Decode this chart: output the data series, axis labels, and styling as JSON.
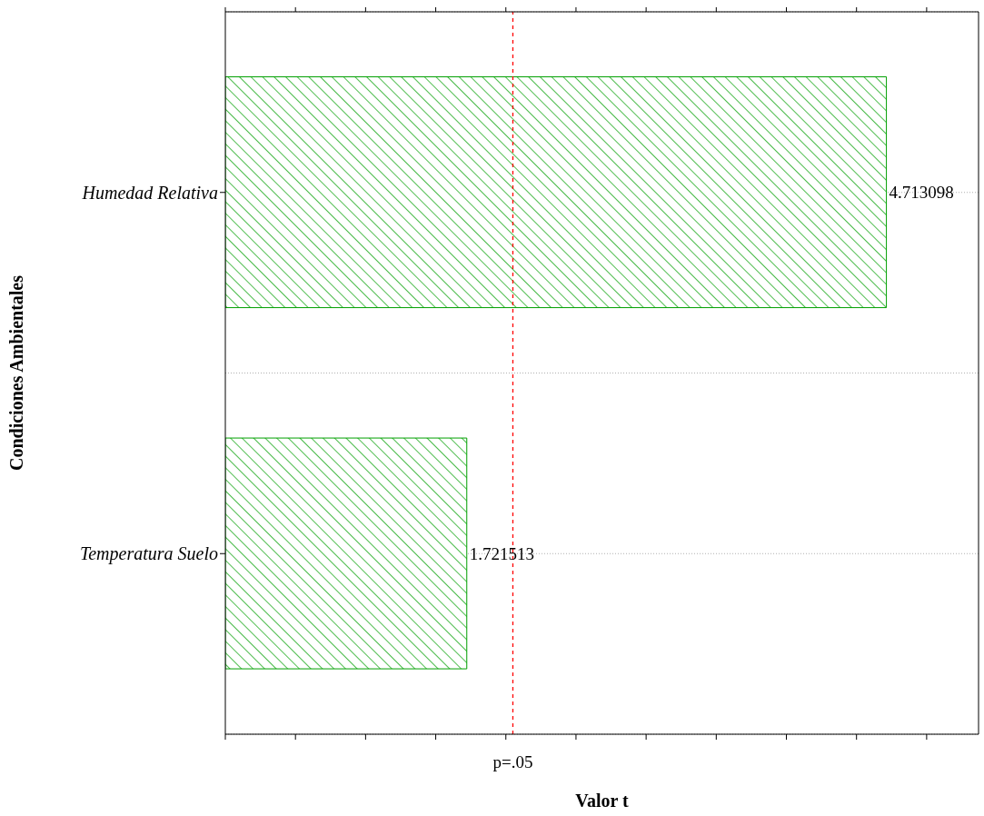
{
  "chart_data": {
    "type": "bar",
    "orientation": "horizontal",
    "ylabel": "Condiciones Ambientales",
    "xlabel": "Valor t",
    "categories": [
      "Humedad Relativa",
      "Temperatura Suelo"
    ],
    "values": [
      4.713098,
      1.721513
    ],
    "color": "#00a000",
    "data_labels": true,
    "tick_labels": "y",
    "grid": "y",
    "xlim": [
      0,
      5.37
    ],
    "xticks": [
      {
        "value": 0,
        "label": null
      },
      {
        "value": 0.5,
        "label": null
      },
      {
        "value": 1,
        "label": null
      },
      {
        "value": 1.5,
        "label": null
      },
      {
        "value": 2,
        "label": null
      },
      {
        "value": 2.5,
        "label": null
      },
      {
        "value": 3,
        "label": null
      },
      {
        "value": 3.5,
        "label": null
      },
      {
        "value": 4,
        "label": null
      },
      {
        "value": 4.5,
        "label": null
      },
      {
        "value": 5,
        "label": null
      }
    ],
    "ref_lines": [
      {
        "axis": "x",
        "value": 2.05,
        "label": "p=.05",
        "color": "#ff0000",
        "line_style": "dashed"
      }
    ]
  }
}
